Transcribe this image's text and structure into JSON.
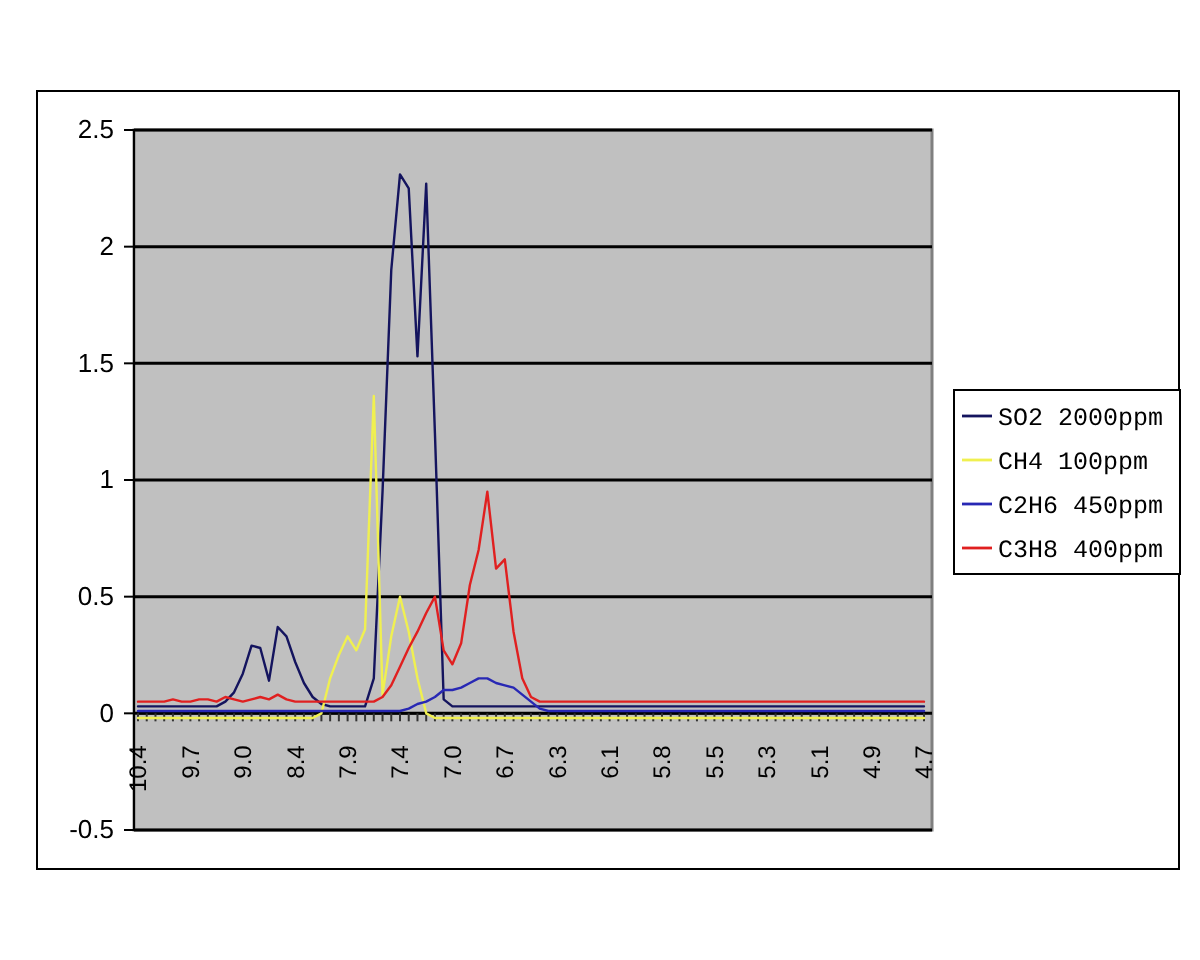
{
  "chart_data": {
    "type": "line",
    "categories": [
      "10.4",
      null,
      null,
      null,
      null,
      null,
      "9.7",
      null,
      null,
      null,
      null,
      null,
      "9.0",
      null,
      null,
      null,
      null,
      null,
      "8.4",
      null,
      null,
      null,
      null,
      null,
      "7.9",
      null,
      null,
      null,
      null,
      null,
      "7.4",
      null,
      null,
      null,
      null,
      null,
      "7.0",
      null,
      null,
      null,
      null,
      null,
      "6.7",
      null,
      null,
      null,
      null,
      null,
      "6.3",
      null,
      null,
      null,
      null,
      null,
      "6.1",
      null,
      null,
      null,
      null,
      null,
      "5.8",
      null,
      null,
      null,
      null,
      null,
      "5.5",
      null,
      null,
      null,
      null,
      null,
      "5.3",
      null,
      null,
      null,
      null,
      null,
      "5.1",
      null,
      null,
      null,
      null,
      null,
      "4.9",
      null,
      null,
      null,
      null,
      null,
      "4.7"
    ],
    "series": [
      {
        "name": "SO2 2000ppm",
        "color": "#14145e",
        "values": [
          0.03,
          0.03,
          0.03,
          0.03,
          0.03,
          0.03,
          0.03,
          0.03,
          0.03,
          0.03,
          0.05,
          0.09,
          0.17,
          0.29,
          0.28,
          0.14,
          0.37,
          0.33,
          0.22,
          0.13,
          0.07,
          0.04,
          0.03,
          0.03,
          0.03,
          0.03,
          0.03,
          0.15,
          0.95,
          1.9,
          2.31,
          2.25,
          1.53,
          2.27,
          1.2,
          0.06,
          0.03,
          0.03,
          0.03,
          0.03,
          0.03,
          0.03,
          0.03,
          0.03,
          0.03,
          0.03,
          0.03,
          0.03,
          0.03,
          0.03,
          0.03,
          0.03,
          0.03,
          0.03,
          0.03,
          0.03,
          0.03,
          0.03,
          0.03,
          0.03,
          0.03,
          0.03,
          0.03,
          0.03,
          0.03,
          0.03,
          0.03,
          0.03,
          0.03,
          0.03,
          0.03,
          0.03,
          0.03,
          0.03,
          0.03,
          0.03,
          0.03,
          0.03,
          0.03,
          0.03,
          0.03,
          0.03,
          0.03,
          0.03,
          0.03,
          0.03,
          0.03,
          0.03,
          0.03,
          0.03,
          0.03
        ]
      },
      {
        "name": "CH4 100ppm",
        "color": "#f0f050",
        "values": [
          -0.02,
          -0.02,
          -0.02,
          -0.02,
          -0.02,
          -0.02,
          -0.02,
          -0.02,
          -0.02,
          -0.02,
          -0.02,
          -0.02,
          -0.02,
          -0.02,
          -0.02,
          -0.02,
          -0.02,
          -0.02,
          -0.02,
          -0.02,
          -0.02,
          0.0,
          0.15,
          0.25,
          0.33,
          0.27,
          0.36,
          1.36,
          0.08,
          0.33,
          0.5,
          0.35,
          0.15,
          0.0,
          -0.02,
          -0.02,
          -0.02,
          -0.02,
          -0.02,
          -0.02,
          -0.02,
          -0.02,
          -0.02,
          -0.02,
          -0.02,
          -0.02,
          -0.02,
          -0.02,
          -0.02,
          -0.02,
          -0.02,
          -0.02,
          -0.02,
          -0.02,
          -0.02,
          -0.02,
          -0.02,
          -0.02,
          -0.02,
          -0.02,
          -0.02,
          -0.02,
          -0.02,
          -0.02,
          -0.02,
          -0.02,
          -0.02,
          -0.02,
          -0.02,
          -0.02,
          -0.02,
          -0.02,
          -0.02,
          -0.02,
          -0.02,
          -0.02,
          -0.02,
          -0.02,
          -0.02,
          -0.02,
          -0.02,
          -0.02,
          -0.02,
          -0.02,
          -0.02,
          -0.02,
          -0.02,
          -0.02,
          -0.02,
          -0.02,
          -0.02
        ]
      },
      {
        "name": "C2H6 450ppm",
        "color": "#2828b4",
        "values": [
          0.01,
          0.01,
          0.01,
          0.01,
          0.01,
          0.01,
          0.01,
          0.01,
          0.01,
          0.01,
          0.01,
          0.01,
          0.01,
          0.01,
          0.01,
          0.01,
          0.01,
          0.01,
          0.01,
          0.01,
          0.01,
          0.01,
          0.01,
          0.01,
          0.01,
          0.01,
          0.01,
          0.01,
          0.01,
          0.01,
          0.01,
          0.02,
          0.04,
          0.05,
          0.07,
          0.1,
          0.1,
          0.11,
          0.13,
          0.15,
          0.15,
          0.13,
          0.12,
          0.11,
          0.08,
          0.05,
          0.02,
          0.01,
          0.01,
          0.01,
          0.01,
          0.01,
          0.01,
          0.01,
          0.01,
          0.01,
          0.01,
          0.01,
          0.01,
          0.01,
          0.01,
          0.01,
          0.01,
          0.01,
          0.01,
          0.01,
          0.01,
          0.01,
          0.01,
          0.01,
          0.01,
          0.01,
          0.01,
          0.01,
          0.01,
          0.01,
          0.01,
          0.01,
          0.01,
          0.01,
          0.01,
          0.01,
          0.01,
          0.01,
          0.01,
          0.01,
          0.01,
          0.01,
          0.01,
          0.01,
          0.01
        ]
      },
      {
        "name": "C3H8 400ppm",
        "color": "#e02020",
        "values": [
          0.05,
          0.05,
          0.05,
          0.05,
          0.06,
          0.05,
          0.05,
          0.06,
          0.06,
          0.05,
          0.07,
          0.06,
          0.05,
          0.06,
          0.07,
          0.06,
          0.08,
          0.06,
          0.05,
          0.05,
          0.05,
          0.05,
          0.05,
          0.05,
          0.05,
          0.05,
          0.05,
          0.05,
          0.07,
          0.12,
          0.2,
          0.28,
          0.35,
          0.43,
          0.5,
          0.27,
          0.21,
          0.3,
          0.55,
          0.7,
          0.95,
          0.62,
          0.66,
          0.35,
          0.15,
          0.07,
          0.05,
          0.05,
          0.05,
          0.05,
          0.05,
          0.05,
          0.05,
          0.05,
          0.05,
          0.05,
          0.05,
          0.05,
          0.05,
          0.05,
          0.05,
          0.05,
          0.05,
          0.05,
          0.05,
          0.05,
          0.05,
          0.05,
          0.05,
          0.05,
          0.05,
          0.05,
          0.05,
          0.05,
          0.05,
          0.05,
          0.05,
          0.05,
          0.05,
          0.05,
          0.05,
          0.05,
          0.05,
          0.05,
          0.05,
          0.05,
          0.05,
          0.05,
          0.05,
          0.05,
          0.05
        ]
      }
    ],
    "ylim": [
      -0.5,
      2.5
    ],
    "yticks": [
      -0.5,
      0,
      0.5,
      1,
      1.5,
      2,
      2.5
    ],
    "grid": "y",
    "legend": "right"
  }
}
